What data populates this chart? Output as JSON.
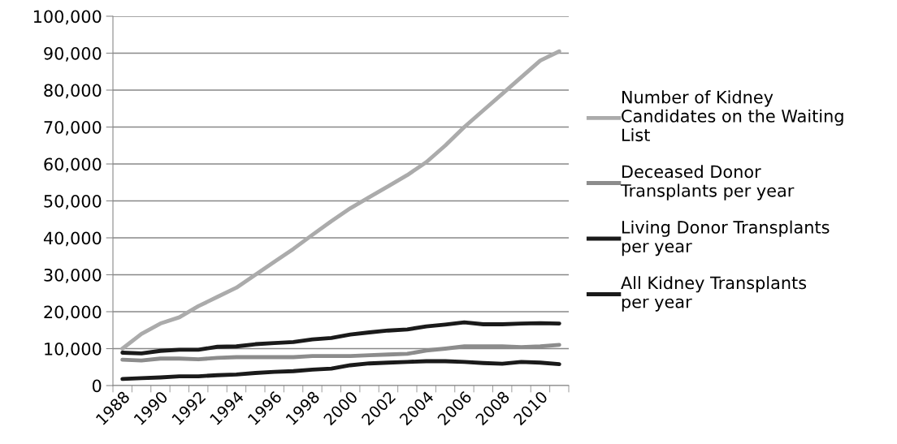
{
  "chart_data": {
    "type": "line",
    "categories": [
      "1988",
      null,
      "1990",
      null,
      "1992",
      null,
      "1994",
      null,
      "1996",
      null,
      "1998",
      null,
      "2000",
      null,
      "2002",
      null,
      "2004",
      null,
      "2006",
      null,
      "2008",
      null,
      "2010",
      null
    ],
    "series": [
      {
        "name": "Number of Kidney Candidates on the Waiting List",
        "color": "#ababab",
        "values": [
          10000,
          14000,
          16800,
          18500,
          21500,
          24000,
          26500,
          30000,
          33500,
          37000,
          40800,
          44500,
          48000,
          51000,
          54000,
          57000,
          60500,
          65000,
          70000,
          74500,
          79000,
          83500,
          88000,
          90500
        ]
      },
      {
        "name": "Deceased Donor Transplants per year",
        "color": "#8c8c8c",
        "values": [
          7000,
          6800,
          7300,
          7300,
          7100,
          7500,
          7700,
          7700,
          7700,
          7700,
          8000,
          8000,
          8000,
          8200,
          8400,
          8600,
          9500,
          10000,
          10600,
          10600,
          10600,
          10400,
          10600,
          11000
        ]
      },
      {
        "name": "Living Donor Transplants per year",
        "color": "#1a1a1a",
        "values": [
          1800,
          2000,
          2200,
          2500,
          2500,
          2800,
          3000,
          3400,
          3700,
          3900,
          4300,
          4600,
          5500,
          6000,
          6200,
          6400,
          6600,
          6600,
          6400,
          6100,
          5900,
          6400,
          6200,
          5800
        ]
      },
      {
        "name": "All Kidney Transplants per year",
        "color": "#1a1a1a",
        "values": [
          8900,
          8700,
          9400,
          9700,
          9700,
          10500,
          10600,
          11200,
          11500,
          11800,
          12500,
          12900,
          13800,
          14400,
          14900,
          15200,
          16000,
          16500,
          17100,
          16600,
          16600,
          16800,
          16900,
          16800
        ]
      }
    ],
    "ylim": [
      0,
      100000
    ],
    "yticks": [
      {
        "value": 0,
        "label": "0"
      },
      {
        "value": 10000,
        "label": "10,000"
      },
      {
        "value": 20000,
        "label": "20,000"
      },
      {
        "value": 30000,
        "label": "30,000"
      },
      {
        "value": 40000,
        "label": "40,000"
      },
      {
        "value": 50000,
        "label": "50,000"
      },
      {
        "value": 60000,
        "label": "60,000"
      },
      {
        "value": 70000,
        "label": "70,000"
      },
      {
        "value": 80000,
        "label": "80,000"
      },
      {
        "value": 90000,
        "label": "90,000"
      },
      {
        "value": 100000,
        "label": "100,000"
      }
    ],
    "grid": "y",
    "legend": "right",
    "marker": "none",
    "line_style": "solid"
  }
}
